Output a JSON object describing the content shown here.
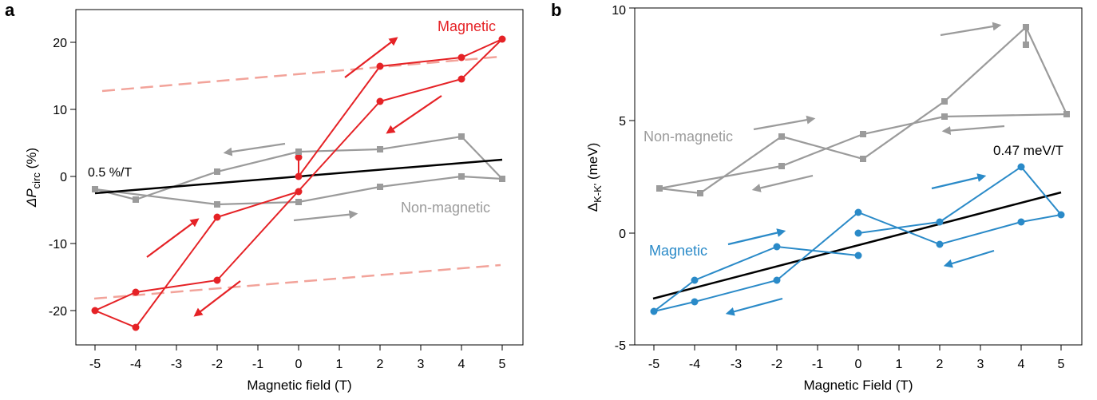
{
  "colors": {
    "magnetic_a": "#e52226",
    "magnetic_a_light": "#f2a39a",
    "magnetic_b": "#2a8ac8",
    "nonmagnetic": "#9b9b9b",
    "fit": "#000000"
  },
  "panels": [
    {
      "letter": "a",
      "xlabel": "Magnetic field (T)",
      "ylabel_main": "ΔP",
      "ylabel_sub": "circ",
      "ylabel_tail": " (%)",
      "x_ticks": [
        "-5",
        "-4",
        "-3",
        "-2",
        "-1",
        "0",
        "1",
        "2",
        "3",
        "4",
        "5"
      ],
      "y_ticks": [
        "-20",
        "-10",
        "0",
        "10",
        "20"
      ],
      "annotations": {
        "magnetic": "Magnetic",
        "nonmagnetic": "Non-magnetic",
        "slope": "0.5 %/T"
      }
    },
    {
      "letter": "b",
      "xlabel": "Magnetic Field (T)",
      "ylabel_main": "Δ",
      "ylabel_sub": "K-K'",
      "ylabel_tail": " (meV)",
      "x_ticks": [
        "-5",
        "-4",
        "-3",
        "-2",
        "-1",
        "0",
        "1",
        "2",
        "3",
        "4",
        "5"
      ],
      "y_ticks": [
        "-5",
        "0",
        "5",
        "10"
      ],
      "annotations": {
        "magnetic": "Magnetic",
        "nonmagnetic": "Non-magnetic",
        "slope": "0.47 meV/T"
      }
    }
  ],
  "chart_data": [
    {
      "type": "line",
      "xlabel": "Magnetic field (T)",
      "ylabel": "ΔP_circ (%)",
      "xlim": [
        -6,
        6.2
      ],
      "ylim": [
        -25,
        25
      ],
      "series": [
        {
          "name": "Magnetic",
          "x": [
            0,
            0,
            2,
            4,
            5,
            4,
            2,
            -2,
            -4,
            -5,
            -4,
            -2,
            0
          ],
          "y": [
            2.8,
            0,
            16.4,
            17.7,
            20.5,
            14.5,
            11.3,
            -15.5,
            -17.2,
            -19.9,
            -22.3,
            -6.1,
            -2.3
          ]
        },
        {
          "name": "Non-magnetic",
          "x": [
            -5,
            -4,
            -2,
            0,
            2,
            4,
            5,
            4,
            2,
            0,
            -2,
            -5
          ],
          "y": [
            -1.8,
            -3.4,
            0.8,
            3.7,
            4.2,
            5.9,
            -0.3,
            0,
            -1.5,
            -3.9,
            -4.1,
            -1.8
          ]
        },
        {
          "x": [
            -5,
            5
          ],
          "y": [
            -2.5,
            2.5
          ]
        },
        {
          "x": [
            -5,
            5
          ],
          "y": [
            13,
            18
          ]
        },
        {
          "x": [
            -5,
            5
          ],
          "y": [
            -18,
            -13
          ]
        }
      ]
    },
    {
      "type": "line",
      "xlabel": "Magnetic Field (T)",
      "ylabel": "Δ_K-K' (meV)",
      "xlim": [
        -5.6,
        5.6
      ],
      "ylim": [
        -5,
        10
      ],
      "series": [
        {
          "name": "Non-magnetic",
          "x": [
            -5,
            -4,
            -2,
            0,
            2,
            4,
            5,
            2,
            0,
            -2,
            -5
          ],
          "y": [
            2.0,
            1.8,
            4.3,
            3.3,
            5.9,
            9.2,
            5.3,
            5.2,
            4.4,
            3.0,
            2.0
          ]
        },
        {
          "x": [
            4,
            4
          ],
          "y": [
            9.2,
            8.4
          ]
        },
        {
          "name": "Magnetic",
          "x": [
            0,
            -2,
            -4,
            -5,
            -4,
            -2,
            0,
            2,
            4,
            5,
            4,
            2,
            0
          ],
          "y": [
            -1.0,
            -0.6,
            -2.1,
            -3.5,
            -3.1,
            -2.1,
            0.9,
            -0.5,
            0.5,
            0.8,
            2.9,
            0.5,
            0
          ]
        },
        {
          "x": [
            -5,
            5
          ],
          "y": [
            -2.9,
            1.8
          ]
        }
      ]
    }
  ]
}
